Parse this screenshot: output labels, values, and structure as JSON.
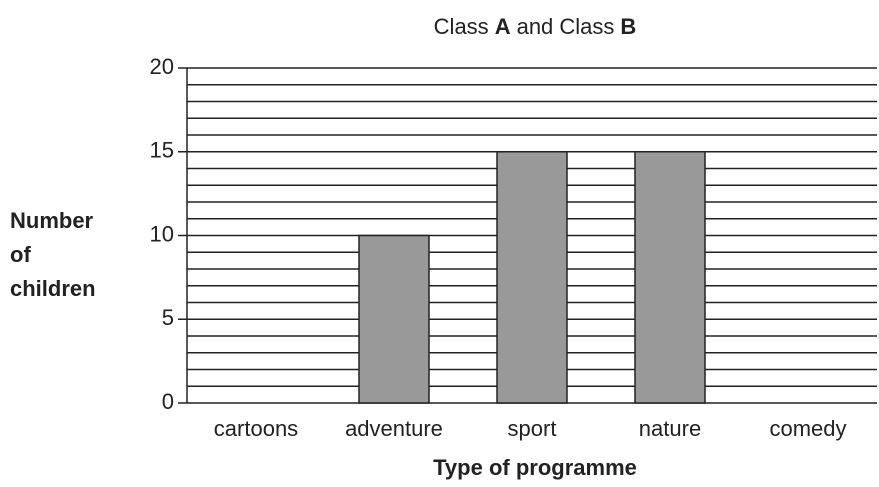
{
  "chart_data": {
    "type": "bar",
    "title": [
      {
        "text": "Class",
        "bold": false
      },
      {
        "text": "A",
        "bold": true
      },
      {
        "text": "and Class",
        "bold": false
      },
      {
        "text": "B",
        "bold": true
      }
    ],
    "ylabel": [
      "Number",
      "of",
      "children"
    ],
    "xlabel": "Type of programme",
    "categories": [
      "cartoons",
      "adventure",
      "sport",
      "nature",
      "comedy"
    ],
    "values": [
      null,
      10,
      15,
      15,
      null
    ],
    "color": "#999999",
    "ylim": [
      0,
      20
    ],
    "yticks": [
      0,
      5,
      10,
      15,
      20
    ],
    "grid_lines": [
      0,
      1,
      2,
      3,
      4,
      5,
      6,
      7,
      8,
      9,
      10,
      11,
      12,
      13,
      14,
      15,
      16,
      17,
      18,
      19,
      20
    ],
    "grid": true
  }
}
